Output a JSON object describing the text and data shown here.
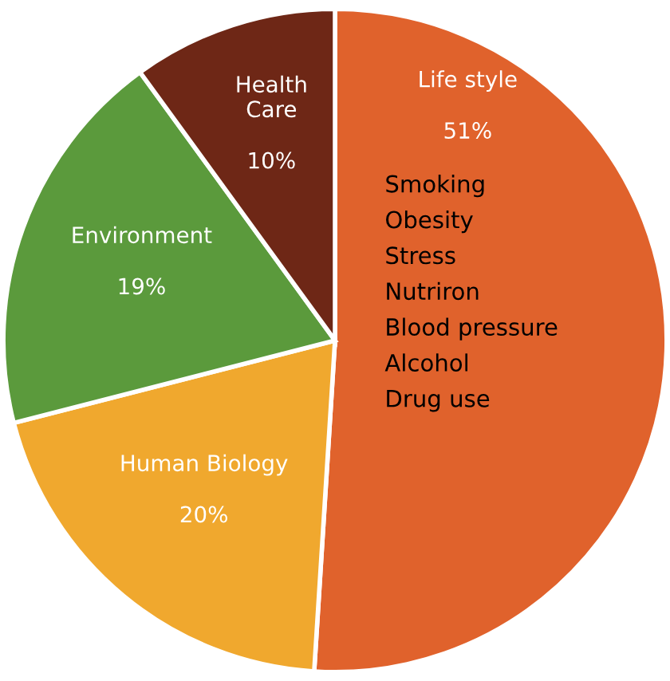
{
  "chart_data": {
    "type": "pie",
    "categories": [
      "Life style",
      "Human Biology",
      "Environment",
      "Health\nCare"
    ],
    "values": [
      51,
      20,
      19,
      10
    ],
    "colors": [
      "#e0622c",
      "#f0a82e",
      "#5b9a3c",
      "#6e2716"
    ],
    "value_labels": [
      "51%",
      "20%",
      "19%",
      "10%"
    ],
    "annotations": [
      "Smoking\nObesity\nStress\nNutriron\nBlood pressure\nAlcohol\nDrug use"
    ]
  }
}
